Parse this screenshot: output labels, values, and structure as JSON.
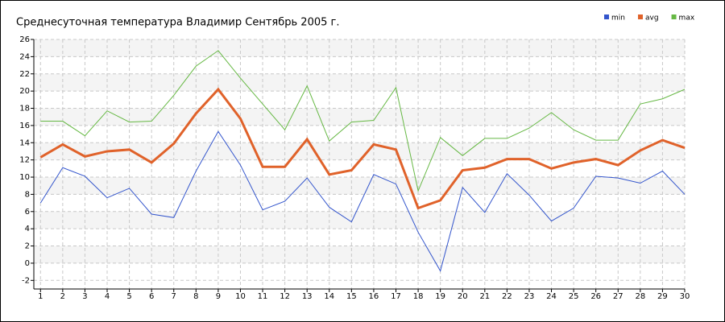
{
  "chart_data": {
    "type": "line",
    "title": "Среднесуточная температура Владимир  Сентябрь 2005 г.",
    "x": [
      1,
      2,
      3,
      4,
      5,
      6,
      7,
      8,
      9,
      10,
      11,
      12,
      13,
      14,
      15,
      16,
      17,
      18,
      19,
      20,
      21,
      22,
      23,
      24,
      25,
      26,
      27,
      28,
      29,
      30
    ],
    "series": [
      {
        "name": "min",
        "color": "#3355cc",
        "values": [
          7.0,
          11.1,
          10.1,
          7.6,
          8.7,
          5.7,
          5.3,
          10.7,
          15.3,
          11.4,
          6.2,
          7.2,
          9.9,
          6.5,
          4.8,
          10.3,
          9.2,
          3.6,
          -0.9,
          8.8,
          5.9,
          10.4,
          7.9,
          4.9,
          6.4,
          10.1,
          9.9,
          9.3,
          10.7,
          8.0
        ]
      },
      {
        "name": "avg",
        "color": "#e0622a",
        "values": [
          12.3,
          13.8,
          12.4,
          13.0,
          13.2,
          11.7,
          13.9,
          17.4,
          20.2,
          16.8,
          11.2,
          11.2,
          14.4,
          10.3,
          10.8,
          13.8,
          13.2,
          6.4,
          7.3,
          10.8,
          11.1,
          12.1,
          12.1,
          11.0,
          11.7,
          12.1,
          11.4,
          13.1,
          14.3,
          13.4
        ]
      },
      {
        "name": "max",
        "color": "#66b844",
        "values": [
          16.5,
          16.5,
          14.8,
          17.7,
          16.4,
          16.5,
          19.5,
          22.9,
          24.7,
          21.5,
          18.5,
          15.5,
          20.6,
          14.2,
          16.4,
          16.6,
          20.4,
          8.4,
          14.6,
          12.5,
          14.5,
          14.5,
          15.7,
          17.5,
          15.5,
          14.3,
          14.3,
          18.5,
          19.1,
          20.2
        ]
      }
    ],
    "xlim": [
      0.7,
      30
    ],
    "xticks": [
      1,
      2,
      3,
      4,
      5,
      6,
      7,
      8,
      9,
      10,
      11,
      12,
      13,
      14,
      15,
      16,
      17,
      18,
      19,
      20,
      21,
      22,
      23,
      24,
      25,
      26,
      27,
      28,
      29,
      30
    ],
    "ylim": [
      -3,
      26
    ],
    "yticks": [
      -2,
      0,
      2,
      4,
      6,
      8,
      10,
      12,
      14,
      16,
      18,
      20,
      22,
      24,
      26
    ],
    "grid": true,
    "legend": "top-right"
  }
}
